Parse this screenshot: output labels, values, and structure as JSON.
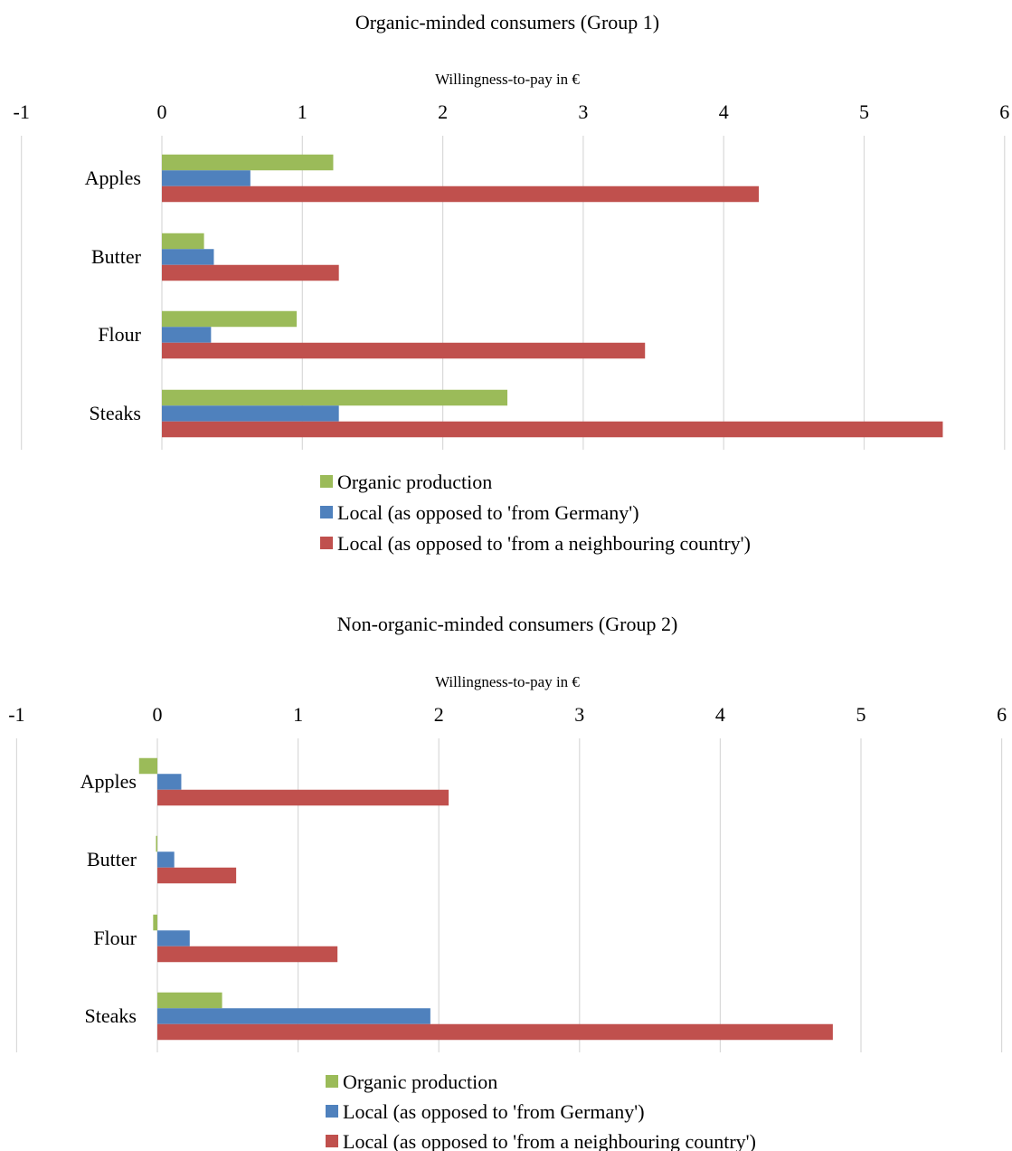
{
  "chart_data": [
    {
      "type": "bar",
      "orientation": "horizontal",
      "title": "Organic-minded consumers (Group 1)",
      "xlabel": "Willingness-to-pay in €",
      "ylabel": "",
      "xlim": [
        -1,
        6
      ],
      "xticks": [
        "-1",
        "0",
        "1",
        "2",
        "3",
        "4",
        "5",
        "6"
      ],
      "categories": [
        "Apples",
        "Butter",
        "Flour",
        "Steaks"
      ],
      "grid": true,
      "legend_position": "bottom",
      "series": [
        {
          "name": "Organic production",
          "color": "#9BBB59",
          "values": [
            1.22,
            0.3,
            0.96,
            2.46
          ]
        },
        {
          "name": "Local (as opposed to 'from Germany')",
          "color": "#4F81BD",
          "values": [
            0.63,
            0.37,
            0.35,
            1.26
          ]
        },
        {
          "name": "Local (as opposed to 'from a neighbouring country')",
          "color": "#C0504D",
          "values": [
            4.25,
            1.26,
            3.44,
            5.56
          ]
        }
      ]
    },
    {
      "type": "bar",
      "orientation": "horizontal",
      "title": "Non-organic-minded consumers (Group 2)",
      "xlabel": "Willingness-to-pay in €",
      "ylabel": "",
      "xlim": [
        -1,
        6
      ],
      "xticks": [
        "-1",
        "0",
        "1",
        "2",
        "3",
        "4",
        "5",
        "6"
      ],
      "categories": [
        "Apples",
        "Butter",
        "Flour",
        "Steaks"
      ],
      "grid": true,
      "legend_position": "bottom",
      "series": [
        {
          "name": "Organic production",
          "color": "#9BBB59",
          "values": [
            -0.13,
            -0.01,
            -0.03,
            0.46
          ]
        },
        {
          "name": "Local (as opposed to 'from Germany')",
          "color": "#4F81BD",
          "values": [
            0.17,
            0.12,
            0.23,
            1.94
          ]
        },
        {
          "name": "Local (as opposed to 'from a neighbouring country')",
          "color": "#C0504D",
          "values": [
            2.07,
            0.56,
            1.28,
            4.8
          ]
        }
      ]
    }
  ]
}
